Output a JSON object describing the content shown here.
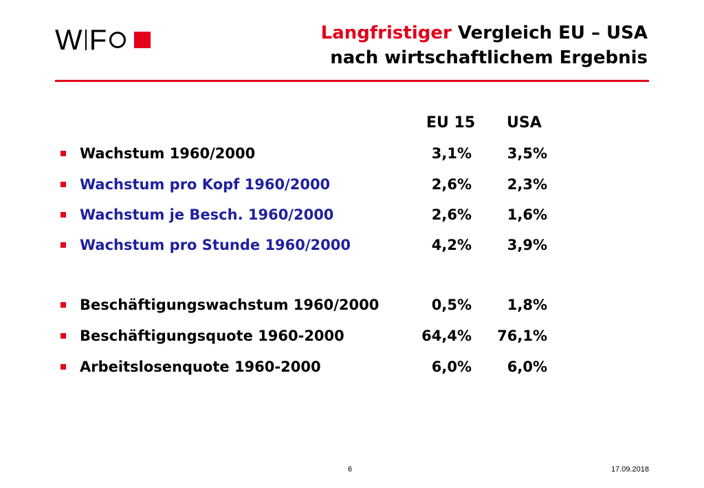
{
  "logo": {
    "part1": "W",
    "part2": "F",
    "circle_icon": "circle-icon",
    "square_icon": "square-icon",
    "square_color": "#e3001b"
  },
  "title": {
    "highlight": "Langfristiger",
    "rest1": " Vergleich EU – USA",
    "line2": "nach wirtschaftlichem Ergebnis"
  },
  "colors": {
    "accent": "#e3001b",
    "blue": "#1f1f9e",
    "black": "#000000"
  },
  "table": {
    "headers": [
      "EU 15",
      "USA"
    ],
    "rows": [
      {
        "label": "Wachstum 1960/2000",
        "eu": "3,1%",
        "usa": "3,5%",
        "color": "#000000"
      },
      {
        "label": "Wachstum pro Kopf 1960/2000",
        "eu": "2,6%",
        "usa": "2,3%",
        "color": "#1f1f9e"
      },
      {
        "label": "Wachstum je Besch. 1960/2000",
        "eu": "2,6%",
        "usa": "1,6%",
        "color": "#1f1f9e"
      },
      {
        "label": "Wachstum pro Stunde 1960/2000",
        "eu": "4,2%",
        "usa": "3,9%",
        "color": "#1f1f9e"
      },
      {
        "label": "Beschäftigungswachstum 1960/2000",
        "eu": "0,5%",
        "usa": "1,8%",
        "color": "#000000"
      },
      {
        "label": "Beschäftigungsquote 1960-2000",
        "eu": "64,4%",
        "usa": "76,1%",
        "color": "#000000"
      },
      {
        "label": "Arbeitslosenquote 1960-2000",
        "eu": "6,0%",
        "usa": "6,0%",
        "color": "#000000"
      }
    ]
  },
  "footer": {
    "page": "6",
    "date": "17.09.2018"
  }
}
